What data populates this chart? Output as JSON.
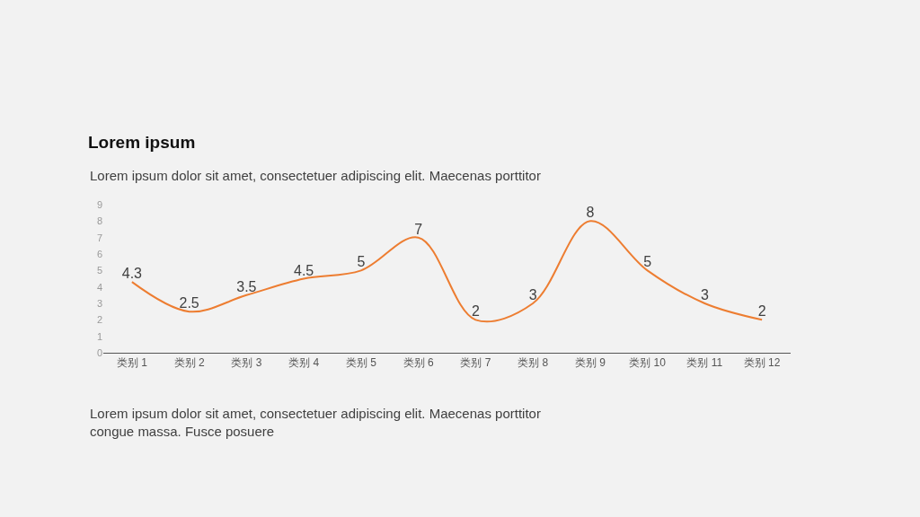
{
  "chart_data": {
    "type": "line",
    "title": "Lorem ipsum",
    "subtitle": "Lorem ipsum dolor sit amet, consectetuer adipiscing elit. Maecenas porttitor",
    "annotations": [
      "Lorem ipsum dolor sit amet, consectetuer adipiscing elit. Maecenas porttitor\ncongue massa. Fusce posuere"
    ],
    "categories": [
      "类别 1",
      "类别 2",
      "类别 3",
      "类别 4",
      "类别 5",
      "类别 6",
      "类别 7",
      "类别 8",
      "类别 9",
      "类别 10",
      "类别 11",
      "类别 12"
    ],
    "series": [
      {
        "color": "#ed7d31",
        "values": [
          4.3,
          2.5,
          3.5,
          4.5,
          5,
          7,
          2,
          3,
          8,
          5,
          3,
          2
        ]
      }
    ],
    "ylim": [
      0,
      9
    ],
    "yticks": [
      0,
      1,
      2,
      3,
      4,
      5,
      6,
      7,
      8,
      9
    ],
    "grid": false,
    "marker": "none",
    "line_style": "solid",
    "data_labels": true
  }
}
